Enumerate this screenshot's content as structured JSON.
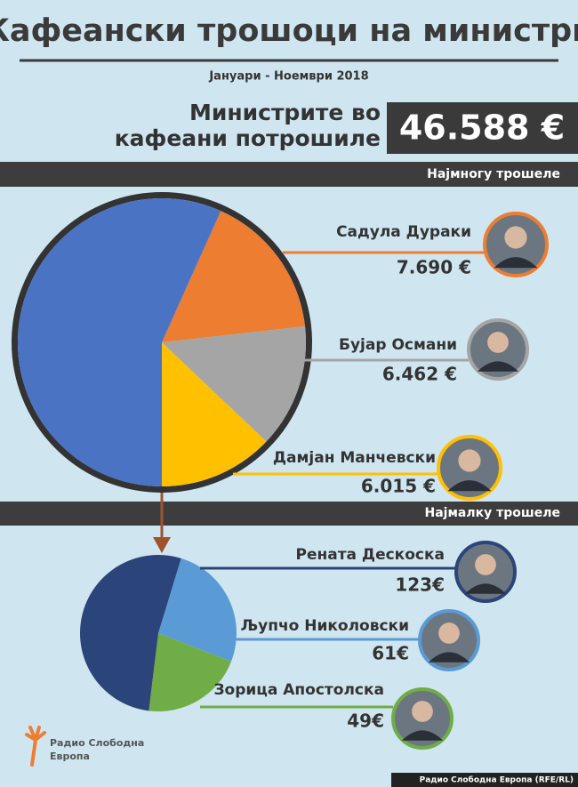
{
  "title": "Кафеански трошоци на министри",
  "subtitle": "Јануари - Ноември 2018",
  "total_caption": [
    "Министрите во",
    "кафеани потрошиле"
  ],
  "total": "46.588 €",
  "chart_data": [
    {
      "type": "pie",
      "title": "Најмногу трошеле",
      "categories": [
        "Садула Дураки",
        "Бујар Османи",
        "Дамјан Манчевски",
        null
      ],
      "values": [
        7690,
        6462,
        6015,
        26421
      ],
      "value_labels": [
        "7.690 €",
        "6.462 €",
        "6.015 €",
        null
      ],
      "colors": [
        "#ed7d31",
        "#a5a5a5",
        "#ffc000",
        "#4a73c4"
      ]
    },
    {
      "type": "pie",
      "title": "Најмалку трошеле",
      "categories": [
        "Рената Дескоска",
        "Љупчо Николовски",
        "Зорица Апостолска"
      ],
      "values": [
        123,
        61,
        49
      ],
      "value_labels": [
        "123€",
        "61€",
        "49€"
      ],
      "colors": [
        "#2b4479",
        "#5b9bd5",
        "#70ad47"
      ]
    }
  ],
  "logo": [
    "Радио Слободна",
    "Европа"
  ],
  "credit": "Радио Слободна Европа (RFE/RL)"
}
